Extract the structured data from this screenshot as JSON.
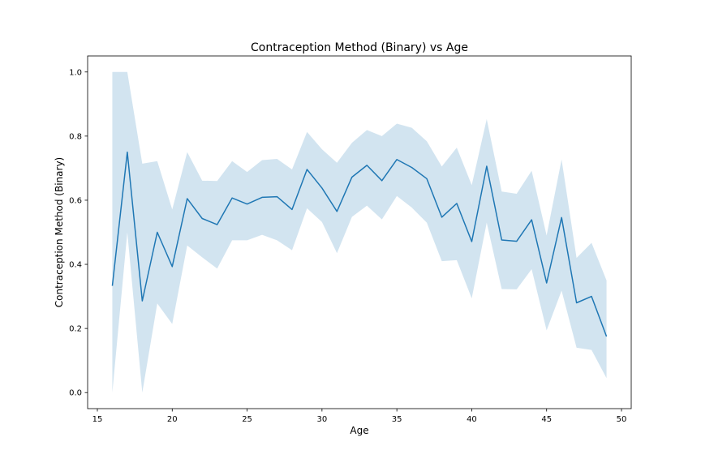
{
  "chart_data": {
    "type": "line",
    "title": "Contraception Method (Binary) vs Age",
    "xlabel": "Age",
    "ylabel": "Contraception Method (Binary)",
    "xlim": [
      14.35,
      50.65
    ],
    "ylim": [
      -0.05,
      1.05
    ],
    "xticks": [
      15,
      20,
      25,
      30,
      35,
      40,
      45,
      50
    ],
    "yticks": [
      0.0,
      0.2,
      0.4,
      0.6,
      0.8,
      1.0
    ],
    "grid": false,
    "legend": "none",
    "series": [
      {
        "x": [
          16,
          17,
          18,
          19,
          20,
          21,
          22,
          23,
          24,
          25,
          26,
          27,
          28,
          29,
          30,
          31,
          32,
          33,
          34,
          35,
          36,
          37,
          38,
          39,
          40,
          41,
          42,
          43,
          44,
          45,
          46,
          47,
          48,
          49
        ],
        "values": [
          0.333,
          0.75,
          0.286,
          0.5,
          0.393,
          0.605,
          0.543,
          0.524,
          0.607,
          0.588,
          0.609,
          0.611,
          0.571,
          0.696,
          0.638,
          0.565,
          0.672,
          0.709,
          0.661,
          0.727,
          0.702,
          0.667,
          0.547,
          0.59,
          0.471,
          0.706,
          0.476,
          0.472,
          0.539,
          0.342,
          0.546,
          0.28,
          0.3,
          0.175
        ],
        "ci_low": [
          0.0,
          0.5,
          0.0,
          0.278,
          0.214,
          0.459,
          0.422,
          0.387,
          0.475,
          0.475,
          0.492,
          0.475,
          0.444,
          0.575,
          0.532,
          0.435,
          0.548,
          0.583,
          0.54,
          0.613,
          0.577,
          0.53,
          0.41,
          0.413,
          0.294,
          0.53,
          0.323,
          0.322,
          0.385,
          0.194,
          0.318,
          0.14,
          0.133,
          0.045
        ],
        "ci_high": [
          1.0,
          1.0,
          0.714,
          0.722,
          0.571,
          0.75,
          0.661,
          0.66,
          0.722,
          0.688,
          0.725,
          0.729,
          0.696,
          0.813,
          0.759,
          0.717,
          0.779,
          0.819,
          0.8,
          0.839,
          0.826,
          0.784,
          0.705,
          0.764,
          0.647,
          0.853,
          0.627,
          0.62,
          0.692,
          0.49,
          0.727,
          0.42,
          0.467,
          0.35
        ]
      }
    ],
    "colors": {
      "line": "#1f77b4",
      "band": "#1f77b4"
    }
  }
}
